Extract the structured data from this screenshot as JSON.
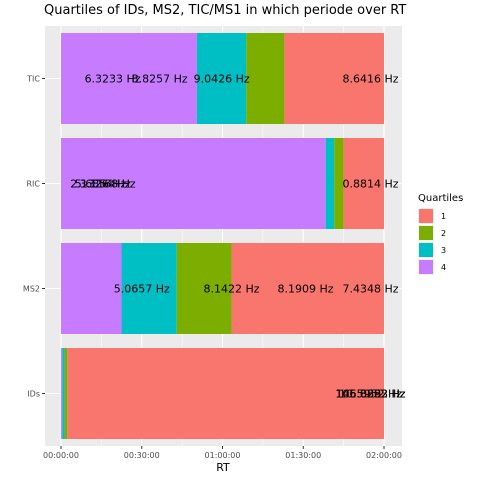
{
  "chart_data": {
    "type": "bar",
    "orientation": "horizontal",
    "stacked": true,
    "title": "Quartiles of IDs, MS2, TIC/MS1 in which periode over RT",
    "xlabel": "RT",
    "ylabel": "",
    "xlim": [
      0,
      7200
    ],
    "x_ticks": [
      {
        "value": 0,
        "label": "00:00:00"
      },
      {
        "value": 1800,
        "label": "00:30:00"
      },
      {
        "value": 3600,
        "label": "01:00:00"
      },
      {
        "value": 5400,
        "label": "01:30:00"
      },
      {
        "value": 7200,
        "label": "02:00:00"
      }
    ],
    "categories": [
      "IDs",
      "MS2",
      "RIC",
      "TIC"
    ],
    "grid": true,
    "legend": {
      "title": "Quartiles",
      "position": "right"
    },
    "series": [
      {
        "name": "4",
        "color": "#C77CFF",
        "start": [
          0,
          0,
          0,
          0
        ],
        "end": [
          30,
          1350,
          5900,
          3030
        ]
      },
      {
        "name": "3",
        "color": "#00BFC4",
        "start": [
          30,
          1350,
          5900,
          3030
        ],
        "end": [
          80,
          2580,
          6090,
          4130
        ]
      },
      {
        "name": "2",
        "color": "#7CAE00",
        "start": [
          80,
          2580,
          6090,
          4130
        ],
        "end": [
          140,
          3800,
          6300,
          4980
        ]
      },
      {
        "name": "1",
        "color": "#F8766D",
        "start": [
          140,
          3800,
          6300,
          4980
        ],
        "end": [
          7200,
          7200,
          7200,
          7200
        ]
      }
    ],
    "bar_labels": [
      {
        "category": "TIC",
        "x": 1150,
        "text": "6.3233  Hz"
      },
      {
        "category": "TIC",
        "x": 2200,
        "text": "8.8257  Hz"
      },
      {
        "category": "TIC",
        "x": 3580,
        "text": "9.0426  Hz"
      },
      {
        "category": "TIC",
        "x": 6900,
        "text": "8.6416  Hz"
      },
      {
        "category": "RIC",
        "x": 830,
        "text": "2.1326  Hz"
      },
      {
        "category": "RIC",
        "x": 930,
        "text": "5.6854  Hz"
      },
      {
        "category": "RIC",
        "x": 1040,
        "text": "3.1168  Hz"
      },
      {
        "category": "RIC",
        "x": 6900,
        "text": "0.8814  Hz"
      },
      {
        "category": "MS2",
        "x": 1800,
        "text": "5.0657  Hz"
      },
      {
        "category": "MS2",
        "x": 3800,
        "text": "8.1422  Hz"
      },
      {
        "category": "MS2",
        "x": 5450,
        "text": "8.1909  Hz"
      },
      {
        "category": "MS2",
        "x": 6900,
        "text": "7.4348  Hz"
      },
      {
        "category": "IDs",
        "x": 6900,
        "text": "145.8892  Hz"
      },
      {
        "category": "IDs",
        "x": 6900,
        "text": "146.0282  Hz"
      },
      {
        "category": "IDs",
        "x": 6900,
        "text": "106.8853  Hz"
      },
      {
        "category": "IDs",
        "x": 6900,
        "text": "10.5952  Hz"
      }
    ]
  }
}
